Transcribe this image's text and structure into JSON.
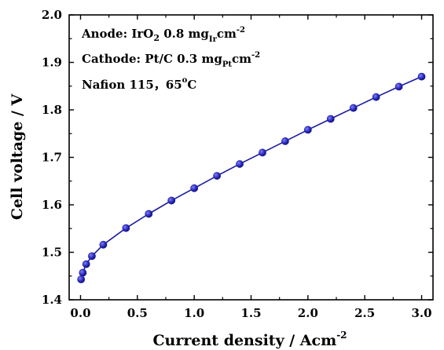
{
  "chart_data": {
    "type": "line",
    "title": "",
    "xlabel": "Current density / Acm",
    "xlabel_superscript": "-2",
    "ylabel": "Cell voltage / V",
    "xlim": [
      -0.1,
      3.1
    ],
    "ylim": [
      1.4,
      2.0
    ],
    "x_ticks": [
      "0.0",
      "0.5",
      "1.0",
      "1.5",
      "2.0",
      "2.5",
      "3.0"
    ],
    "y_ticks": [
      "1.4",
      "1.5",
      "1.6",
      "1.7",
      "1.8",
      "1.9",
      "2.0"
    ],
    "grid": false,
    "annotations": {
      "anode": {
        "prefix": "Anode: IrO",
        "prefix_subscript": "2",
        "loading": " 0.8 mg",
        "loading_subscript": "Ir",
        "unit": "cm",
        "unit_superscript": "-2"
      },
      "cathode": {
        "prefix": "Cathode: Pt/C 0.3 mg",
        "loading_subscript": "Pt",
        "unit": "cm",
        "unit_superscript": "-2"
      },
      "conditions": {
        "membrane": "Nafion 115，65",
        "degree": "o",
        "unit": "C"
      }
    },
    "series": [
      {
        "color": "#1a1aa0",
        "marker_color": "#1c1ca8",
        "x": [
          0.005,
          0.02,
          0.05,
          0.1,
          0.2,
          0.4,
          0.6,
          0.8,
          1.0,
          1.2,
          1.4,
          1.6,
          1.8,
          2.0,
          2.2,
          2.4,
          2.6,
          2.8,
          3.0
        ],
        "y": [
          1.443,
          1.457,
          1.475,
          1.492,
          1.516,
          1.551,
          1.581,
          1.609,
          1.635,
          1.661,
          1.686,
          1.71,
          1.734,
          1.758,
          1.781,
          1.804,
          1.827,
          1.849,
          1.87
        ]
      }
    ]
  }
}
